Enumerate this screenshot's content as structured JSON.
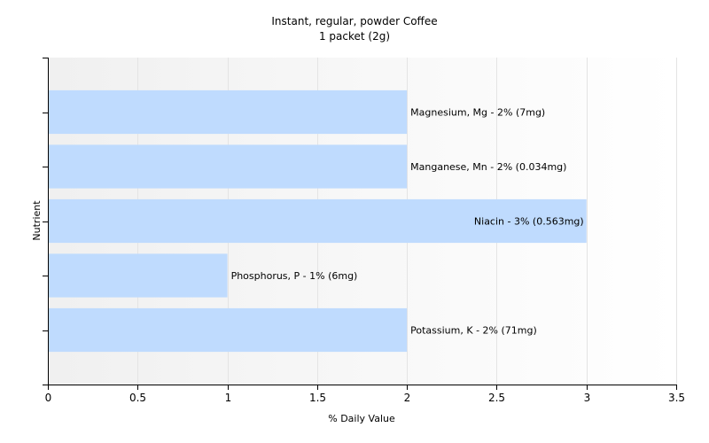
{
  "chart_data": {
    "type": "bar",
    "orientation": "horizontal",
    "title": "Instant, regular, powder Coffee",
    "subtitle": "1 packet (2g)",
    "xlabel": "% Daily Value",
    "ylabel": "Nutrient",
    "xlim": [
      0,
      3.5
    ],
    "xticks": [
      0,
      0.5,
      1,
      1.5,
      2,
      2.5,
      3,
      3.5
    ],
    "xtick_labels": [
      "0",
      "0.5",
      "1",
      "1.5",
      "2",
      "2.5",
      "3",
      "3.5"
    ],
    "grid": true,
    "categories": [
      "Magnesium, Mg",
      "Manganese, Mn",
      "Niacin",
      "Phosphorus, P",
      "Potassium, K"
    ],
    "values": [
      2,
      2,
      3,
      1,
      2
    ],
    "bar_labels": [
      "Magnesium, Mg - 2% (7mg)",
      "Manganese, Mn - 2% (0.034mg)",
      "Niacin - 3% (0.563mg)",
      "Phosphorus, P - 1% (6mg)",
      "Potassium, K - 2% (71mg)"
    ],
    "bar_color": "#bfdbfe",
    "grid_color": "#e4e4e4"
  }
}
